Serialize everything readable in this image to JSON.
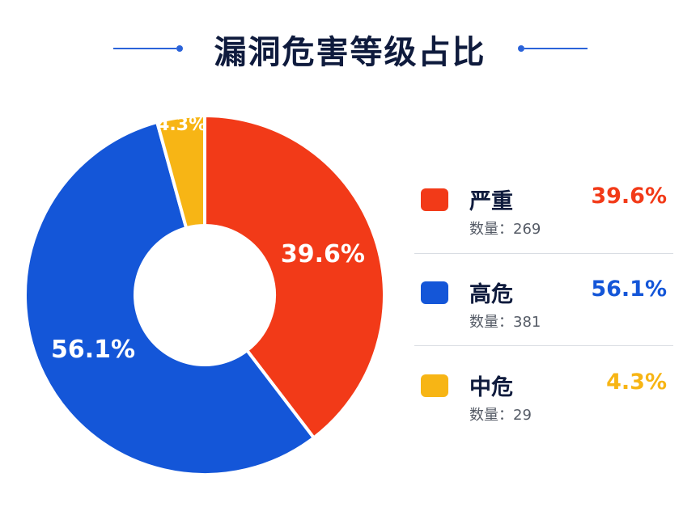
{
  "title": "漏洞危害等级占比",
  "count_label": "数量：",
  "colors": {
    "severe": "#f23a18",
    "high": "#1456d8",
    "medium": "#f7b515",
    "accent": "#2b63d9"
  },
  "chart_data": {
    "type": "pie",
    "title": "漏洞危害等级占比",
    "categories": [
      "严重",
      "高危",
      "中危"
    ],
    "values": [
      269,
      381,
      29
    ],
    "percent_labels": [
      "39.6%",
      "56.1%",
      "4.3%"
    ],
    "legend": "right"
  },
  "legend": [
    {
      "label": "严重",
      "percent": "39.6%",
      "count": "269"
    },
    {
      "label": "高危",
      "percent": "56.1%",
      "count": "381"
    },
    {
      "label": "中危",
      "percent": "4.3%",
      "count": "29"
    }
  ]
}
